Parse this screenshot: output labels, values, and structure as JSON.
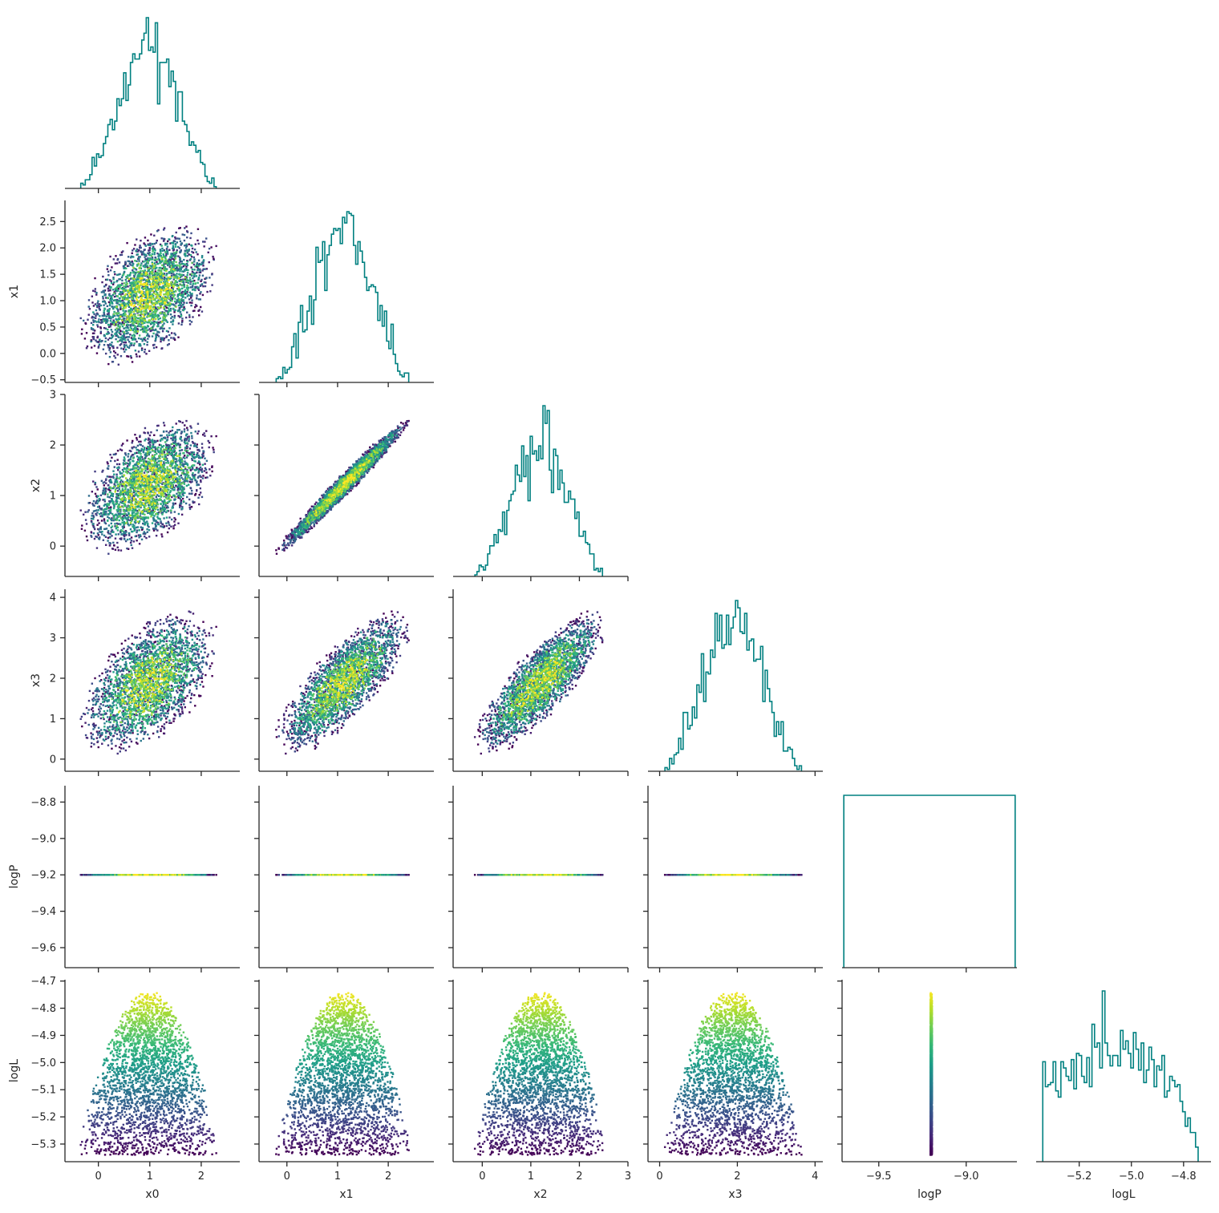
{
  "chart_data": {
    "type": "corner",
    "description_type": "scatter-matrix",
    "parameters": [
      "x0",
      "x1",
      "x2",
      "x3",
      "logP",
      "logL"
    ],
    "colors": {
      "histogram": "#008080",
      "colormap": "viridis",
      "axis": "#262626"
    },
    "ranges": {
      "x0": [
        -0.65,
        2.75
      ],
      "x1": [
        -0.55,
        2.9
      ],
      "x2": [
        -0.6,
        3.0
      ],
      "x3": [
        -0.3,
        4.2
      ],
      "logP": [
        -9.71,
        -8.71
      ],
      "logL": [
        -5.365,
        -4.695
      ]
    },
    "ticks": {
      "x0": [
        {
          "v": 0,
          "label": "0"
        },
        {
          "v": 1,
          "label": "1"
        },
        {
          "v": 2,
          "label": "2"
        }
      ],
      "x1": [
        {
          "v": -0.5,
          "label": "−0.5"
        },
        {
          "v": 0.0,
          "label": "0.0"
        },
        {
          "v": 0.5,
          "label": "0.5"
        },
        {
          "v": 1.0,
          "label": "1.0"
        },
        {
          "v": 1.5,
          "label": "1.5"
        },
        {
          "v": 2.0,
          "label": "2.0"
        },
        {
          "v": 2.5,
          "label": "2.5"
        }
      ],
      "x1_bottom": [
        {
          "v": 0,
          "label": "0"
        },
        {
          "v": 1,
          "label": "1"
        },
        {
          "v": 2,
          "label": "2"
        }
      ],
      "x2": [
        {
          "v": 0,
          "label": "0"
        },
        {
          "v": 1,
          "label": "1"
        },
        {
          "v": 2,
          "label": "2"
        },
        {
          "v": 3,
          "label": "3"
        }
      ],
      "x3": [
        {
          "v": 0,
          "label": "0"
        },
        {
          "v": 1,
          "label": "1"
        },
        {
          "v": 2,
          "label": "2"
        },
        {
          "v": 3,
          "label": "3"
        },
        {
          "v": 4,
          "label": "4"
        }
      ],
      "x3_bottom": [
        {
          "v": 0,
          "label": "0"
        },
        {
          "v": 2,
          "label": "2"
        },
        {
          "v": 4,
          "label": "4"
        }
      ],
      "logP": [
        {
          "v": -8.8,
          "label": "−8.8"
        },
        {
          "v": -9.0,
          "label": "−9.0"
        },
        {
          "v": -9.2,
          "label": "−9.2"
        },
        {
          "v": -9.4,
          "label": "−9.4"
        },
        {
          "v": -9.6,
          "label": "−9.6"
        }
      ],
      "logP_bottom": [
        {
          "v": -9.5,
          "label": "−9.5"
        },
        {
          "v": -9.0,
          "label": "−9.0"
        }
      ],
      "logL": [
        {
          "v": -4.7,
          "label": "−4.7"
        },
        {
          "v": -4.8,
          "label": "−4.8"
        },
        {
          "v": -4.9,
          "label": "−4.9"
        },
        {
          "v": -5.0,
          "label": "−5.0"
        },
        {
          "v": -5.1,
          "label": "−5.1"
        },
        {
          "v": -5.2,
          "label": "−5.2"
        },
        {
          "v": -5.3,
          "label": "−5.3"
        }
      ],
      "logL_bottom": [
        {
          "v": -5.2,
          "label": "−5.2"
        },
        {
          "v": -5.0,
          "label": "−5.0"
        },
        {
          "v": -4.8,
          "label": "−4.8"
        }
      ]
    },
    "axis_labels": {
      "x0": "x0",
      "x1": "x1",
      "x2": "x2",
      "x3": "x3",
      "logP": "logP",
      "logL": "logL"
    },
    "posterior": {
      "mean": [
        0.98,
        1.12,
        1.2,
        1.88
      ],
      "support_x0": [
        -0.55,
        2.6
      ],
      "support_x1": [
        -0.42,
        2.78
      ],
      "support_x2": [
        -0.45,
        2.85
      ],
      "support_x3": [
        -0.2,
        4.0
      ],
      "logP_value": -9.2,
      "logP_hist_range": [
        -9.7,
        -8.72
      ],
      "logL_max": -4.735,
      "logL_min": -5.34
    }
  }
}
